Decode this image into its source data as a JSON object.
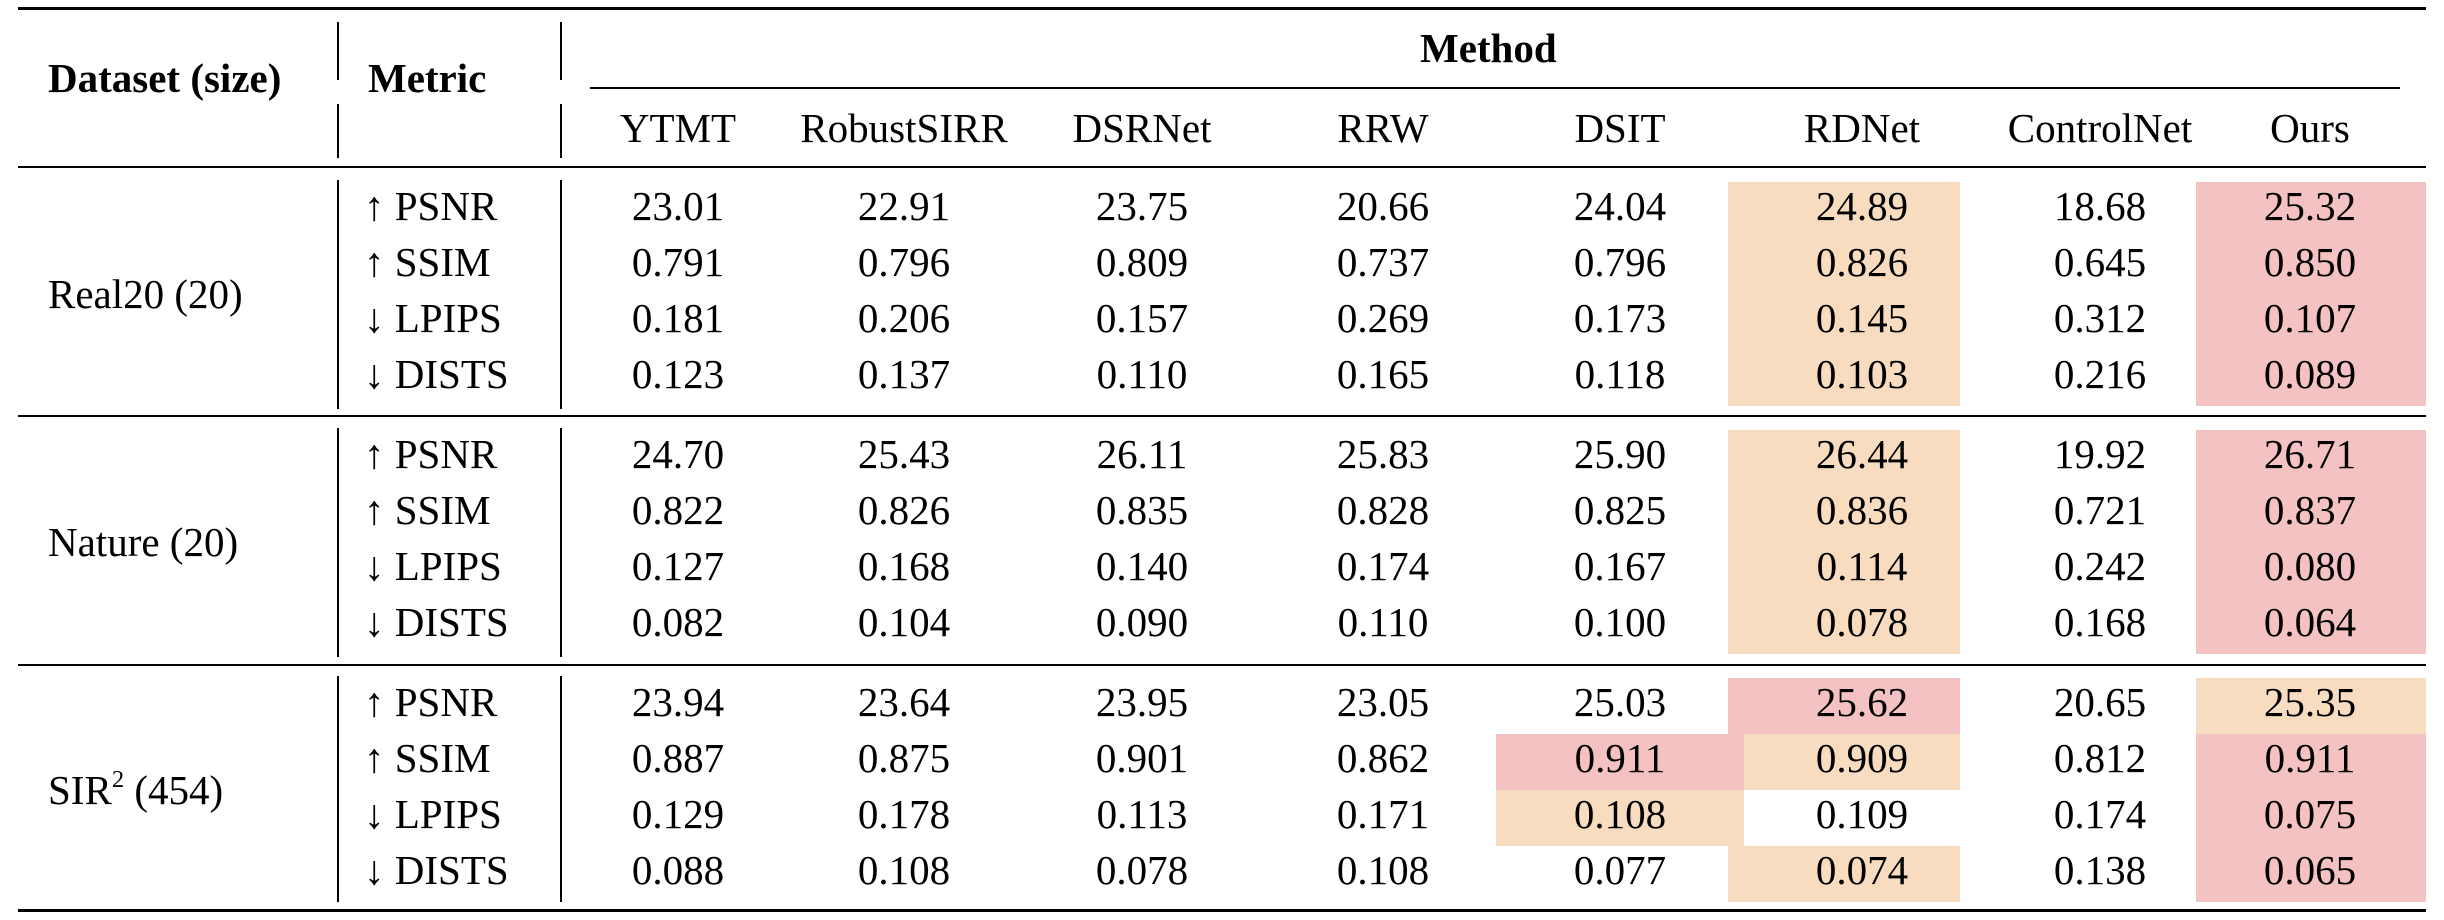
{
  "headers": {
    "dataset": "Dataset (size)",
    "metric": "Metric",
    "method": "Method"
  },
  "columns": [
    "YTMT",
    "RobustSIRR",
    "DSRNet",
    "RRW",
    "DSIT",
    "RDNet",
    "ControlNet",
    "Ours"
  ],
  "colors": {
    "best": "#f4c2c2",
    "second": "#f8dcc0"
  },
  "groups": [
    {
      "dataset": "Real20 (20)",
      "rows": [
        {
          "metric": "↑ PSNR",
          "values": [
            "23.01",
            "22.91",
            "23.75",
            "20.66",
            "24.04",
            "24.89",
            "18.68",
            "25.32"
          ],
          "best": [
            7
          ],
          "second": [
            5
          ]
        },
        {
          "metric": "↑ SSIM",
          "values": [
            "0.791",
            "0.796",
            "0.809",
            "0.737",
            "0.796",
            "0.826",
            "0.645",
            "0.850"
          ],
          "best": [
            7
          ],
          "second": [
            5
          ]
        },
        {
          "metric": "↓ LPIPS",
          "values": [
            "0.181",
            "0.206",
            "0.157",
            "0.269",
            "0.173",
            "0.145",
            "0.312",
            "0.107"
          ],
          "best": [
            7
          ],
          "second": [
            5
          ]
        },
        {
          "metric": "↓ DISTS",
          "values": [
            "0.123",
            "0.137",
            "0.110",
            "0.165",
            "0.118",
            "0.103",
            "0.216",
            "0.089"
          ],
          "best": [
            7
          ],
          "second": [
            5
          ]
        }
      ]
    },
    {
      "dataset": "Nature (20)",
      "rows": [
        {
          "metric": "↑ PSNR",
          "values": [
            "24.70",
            "25.43",
            "26.11",
            "25.83",
            "25.90",
            "26.44",
            "19.92",
            "26.71"
          ],
          "best": [
            7
          ],
          "second": [
            5
          ]
        },
        {
          "metric": "↑ SSIM",
          "values": [
            "0.822",
            "0.826",
            "0.835",
            "0.828",
            "0.825",
            "0.836",
            "0.721",
            "0.837"
          ],
          "best": [
            7
          ],
          "second": [
            5
          ]
        },
        {
          "metric": "↓ LPIPS",
          "values": [
            "0.127",
            "0.168",
            "0.140",
            "0.174",
            "0.167",
            "0.114",
            "0.242",
            "0.080"
          ],
          "best": [
            7
          ],
          "second": [
            5
          ]
        },
        {
          "metric": "↓ DISTS",
          "values": [
            "0.082",
            "0.104",
            "0.090",
            "0.110",
            "0.100",
            "0.078",
            "0.168",
            "0.064"
          ],
          "best": [
            7
          ],
          "second": [
            5
          ]
        }
      ]
    },
    {
      "dataset": "SIR",
      "dataset_sup": "2",
      "dataset_size": " (454)",
      "rows": [
        {
          "metric": "↑ PSNR",
          "values": [
            "23.94",
            "23.64",
            "23.95",
            "23.05",
            "25.03",
            "25.62",
            "20.65",
            "25.35"
          ],
          "best": [
            5
          ],
          "second": [
            7
          ]
        },
        {
          "metric": "↑ SSIM",
          "values": [
            "0.887",
            "0.875",
            "0.901",
            "0.862",
            "0.911",
            "0.909",
            "0.812",
            "0.911"
          ],
          "best": [
            4,
            7
          ],
          "second": [
            5
          ]
        },
        {
          "metric": "↓ LPIPS",
          "values": [
            "0.129",
            "0.178",
            "0.113",
            "0.171",
            "0.108",
            "0.109",
            "0.174",
            "0.075"
          ],
          "best": [
            7
          ],
          "second": [
            4
          ]
        },
        {
          "metric": "↓ DISTS",
          "values": [
            "0.088",
            "0.108",
            "0.078",
            "0.108",
            "0.077",
            "0.074",
            "0.138",
            "0.065"
          ],
          "best": [
            7
          ],
          "second": [
            5
          ]
        }
      ]
    }
  ]
}
